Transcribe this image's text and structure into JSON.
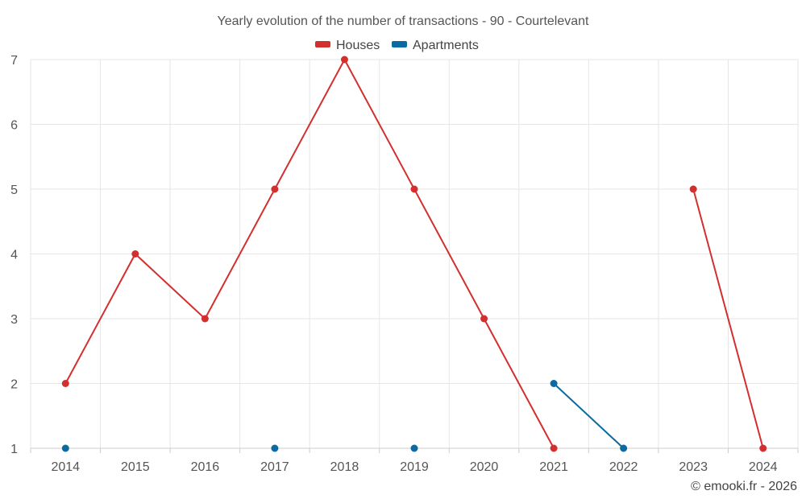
{
  "chart_data": {
    "type": "line",
    "title": "Yearly evolution of the number of transactions - 90 - Courtelevant",
    "xlabel": "",
    "ylabel": "",
    "categories": [
      "2014",
      "2015",
      "2016",
      "2017",
      "2018",
      "2019",
      "2020",
      "2021",
      "2022",
      "2023",
      "2024"
    ],
    "ylim": [
      1,
      7
    ],
    "yticks": [
      "1",
      "2",
      "3",
      "4",
      "5",
      "6",
      "7"
    ],
    "grid": true,
    "legend_position": "top-center",
    "series": [
      {
        "name": "Houses",
        "color": "#d32f2f",
        "values": [
          2,
          4,
          3,
          5,
          7,
          5,
          3,
          1,
          null,
          5,
          1
        ]
      },
      {
        "name": "Apartments",
        "color": "#0a6aa1",
        "values": [
          1,
          null,
          null,
          1,
          null,
          1,
          null,
          2,
          1,
          null,
          null
        ]
      }
    ],
    "credit": "© emooki.fr - 2026"
  }
}
